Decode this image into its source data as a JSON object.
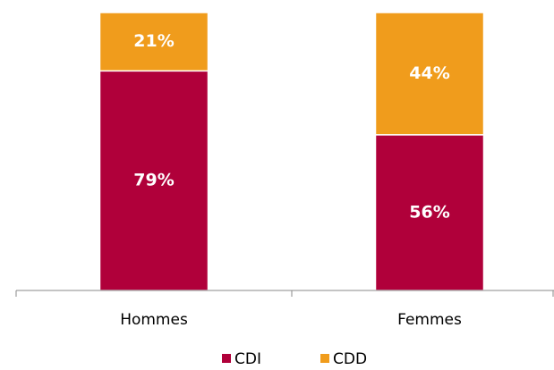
{
  "chart_data": {
    "type": "stacked_bar",
    "categories": [
      "Hommes",
      "Femmes"
    ],
    "series": [
      {
        "name": "CDI",
        "color": "#b0003a",
        "values": [
          79,
          56
        ],
        "value_labels": [
          "79%",
          "56%"
        ]
      },
      {
        "name": "CDD",
        "color": "#f09c1c",
        "values": [
          21,
          44
        ],
        "value_labels": [
          "21%",
          "44%"
        ]
      }
    ],
    "ylim": [
      0,
      100
    ],
    "legend": "bottom"
  }
}
